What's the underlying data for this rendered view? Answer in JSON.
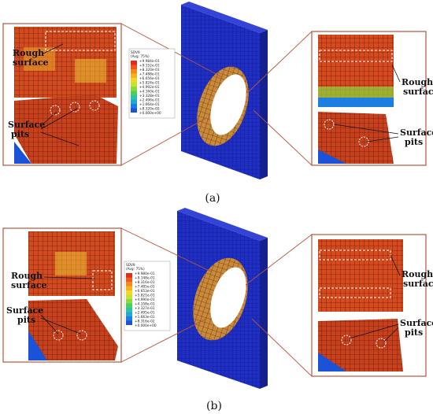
{
  "panels": [
    {
      "caption": "(a)",
      "labels": {
        "rough": "Rough\nsurface",
        "pits": "Surface\npits"
      },
      "right_labels": {
        "rough": "Rough\nsurface",
        "pits": "Surface\npits"
      },
      "legend": {
        "title": "SDV9",
        "subtitle": "(Avg: 75%)",
        "values": [
          "+9.984e-01",
          "+9.152e-01",
          "+8.320e-01",
          "+7.488e-01",
          "+6.656e-01",
          "+5.824e-01",
          "+4.992e-01",
          "+4.160e-01",
          "+3.328e-01",
          "+2.496e-01",
          "+1.664e-01",
          "+8.320e-02",
          "+0.000e+00"
        ]
      }
    },
    {
      "caption": "(b)",
      "labels": {
        "rough": "Rough\nsurface",
        "pits": "Surface\npits"
      },
      "right_labels": {
        "rough": "Rough\nsurface",
        "pits": "Surface\npits"
      },
      "legend": {
        "title": "SDV9",
        "subtitle": "(Avg: 75%)",
        "values": [
          "+9.980e-01",
          "+9.148e-01",
          "+8.316e-01",
          "+7.485e-01",
          "+6.653e-01",
          "+5.821e-01",
          "+4.990e-01",
          "+4.158e-01",
          "+3.327e-01",
          "+2.495e-01",
          "+1.663e-01",
          "+8.316e-02",
          "+0.000e+00"
        ]
      }
    }
  ],
  "colors": {
    "frame": "#b5533c",
    "plate": "#1f2fc4",
    "plate_dark": "#13208e",
    "legend_ramp": [
      "#e8281c",
      "#ee5a1c",
      "#f48a1c",
      "#f6b21e",
      "#f0d824",
      "#c8e030",
      "#8ad83c",
      "#4ccf5a",
      "#2cc3a0",
      "#22a6d4",
      "#1c7ee0",
      "#1a52d8",
      "#1a2ac8"
    ]
  }
}
